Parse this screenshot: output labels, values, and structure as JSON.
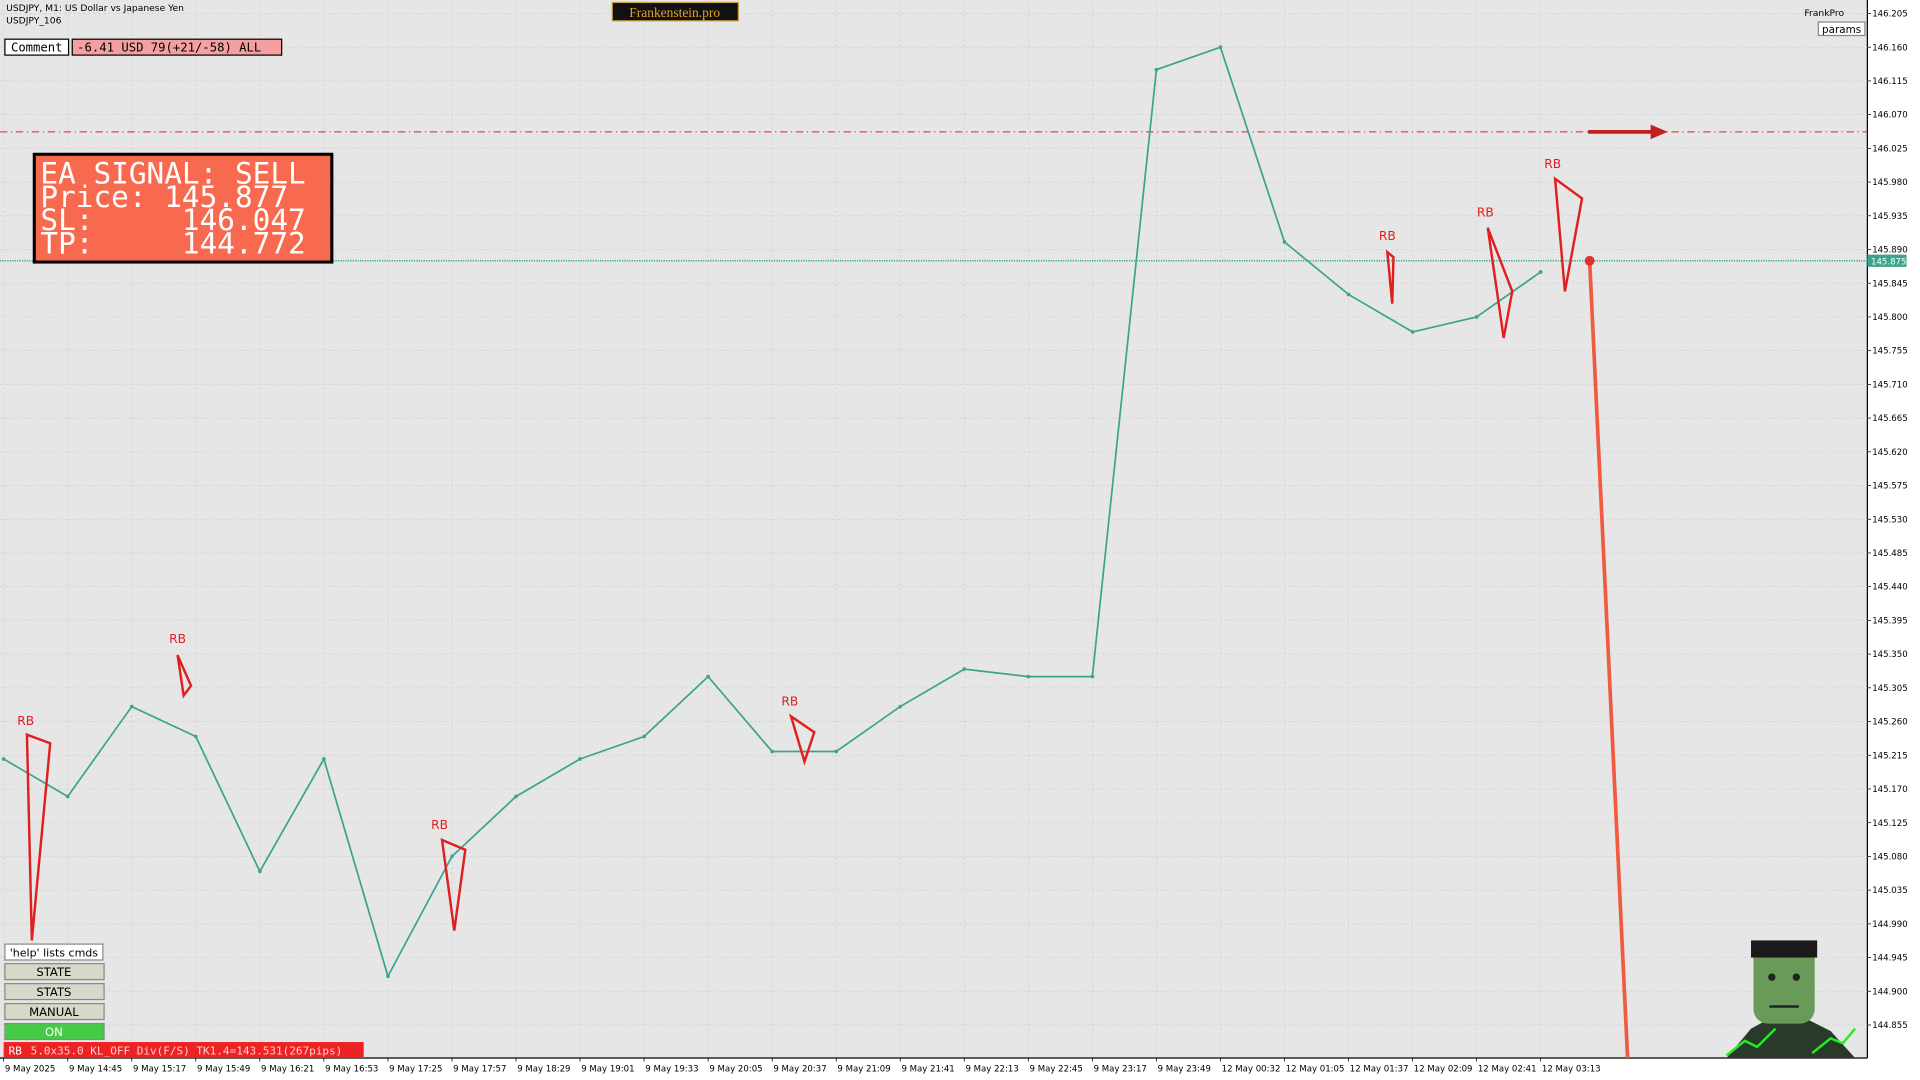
{
  "header": {
    "title": "USDJPY, M1: US Dollar vs Japanese Yen",
    "subtitle": "USDJPY_106",
    "brand": "Frankenstein.pro",
    "account": "FrankPro",
    "params": "params"
  },
  "comment": {
    "label": "Comment",
    "text": "-6.41 USD 79(+21/-58) ALL"
  },
  "signal": {
    "lines": [
      "EA SIGNAL: SELL",
      "Price: 145.877",
      "SL:     146.047",
      "TP:     144.772"
    ]
  },
  "controls": {
    "help": "'help' lists cmds",
    "buttons": [
      "STATE",
      "STATS",
      "MANUAL",
      "ON"
    ]
  },
  "status": {
    "tag": "RB",
    "text": "5.0x35.0 KL_OFF Div(F/S) TK1.4=143.531(267pips)"
  },
  "chart_data": {
    "type": "line",
    "x": [
      "9 May 2025",
      "9 May 14:45",
      "9 May 15:17",
      "9 May 15:49",
      "9 May 16:21",
      "9 May 16:53",
      "9 May 17:25",
      "9 May 17:57",
      "9 May 18:29",
      "9 May 19:01",
      "9 May 19:33",
      "9 May 20:05",
      "9 May 20:37",
      "9 May 21:09",
      "9 May 21:41",
      "9 May 22:13",
      "9 May 22:45",
      "9 May 23:17",
      "9 May 23:49",
      "12 May 00:32",
      "12 May 01:05",
      "12 May 01:37",
      "12 May 02:09",
      "12 May 02:41",
      "12 May 03:13"
    ],
    "series": [
      {
        "name": "USDJPY",
        "color": "#3aa48c",
        "values": [
          145.21,
          145.16,
          145.28,
          145.24,
          145.06,
          145.21,
          144.92,
          145.08,
          145.16,
          145.21,
          145.24,
          145.32,
          145.22,
          145.22,
          145.28,
          145.33,
          145.32,
          145.32,
          146.13,
          146.16,
          145.9,
          145.83,
          145.78,
          145.8,
          145.86
        ]
      }
    ],
    "ylim": [
      144.811,
      146.223
    ],
    "yticks": [
      146.205,
      {
        "value": 146.16,
        "label": "146.160"
      },
      146.115,
      {
        "value": 146.07,
        "label": "146.070"
      },
      146.025,
      {
        "value": 145.98,
        "label": "145.980"
      },
      145.935,
      {
        "value": 145.89,
        "label": "145.890"
      },
      145.845,
      {
        "value": 145.8,
        "label": "145.800"
      },
      145.755,
      {
        "value": 145.71,
        "label": "145.710"
      },
      145.665,
      {
        "value": 145.62,
        "label": "145.620"
      },
      145.575,
      {
        "value": 145.53,
        "label": "145.530"
      },
      145.485,
      {
        "value": 145.44,
        "label": "145.440"
      },
      145.395,
      {
        "value": 145.35,
        "label": "145.350"
      },
      145.305,
      {
        "value": 145.26,
        "label": "145.260"
      },
      145.215,
      {
        "value": 145.17,
        "label": "145.170"
      },
      145.125,
      {
        "value": 145.08,
        "label": "145.080"
      },
      145.035,
      {
        "value": 144.99,
        "label": "144.990"
      },
      144.945,
      {
        "value": 144.9,
        "label": "144.900"
      },
      144.855
    ],
    "grid": true,
    "current_price": 145.875,
    "sl_level": 146.047,
    "tp_level": 144.772,
    "annotations": [
      "RB",
      "RB",
      "RB",
      "RB",
      "RB",
      "RB",
      "RB"
    ]
  }
}
